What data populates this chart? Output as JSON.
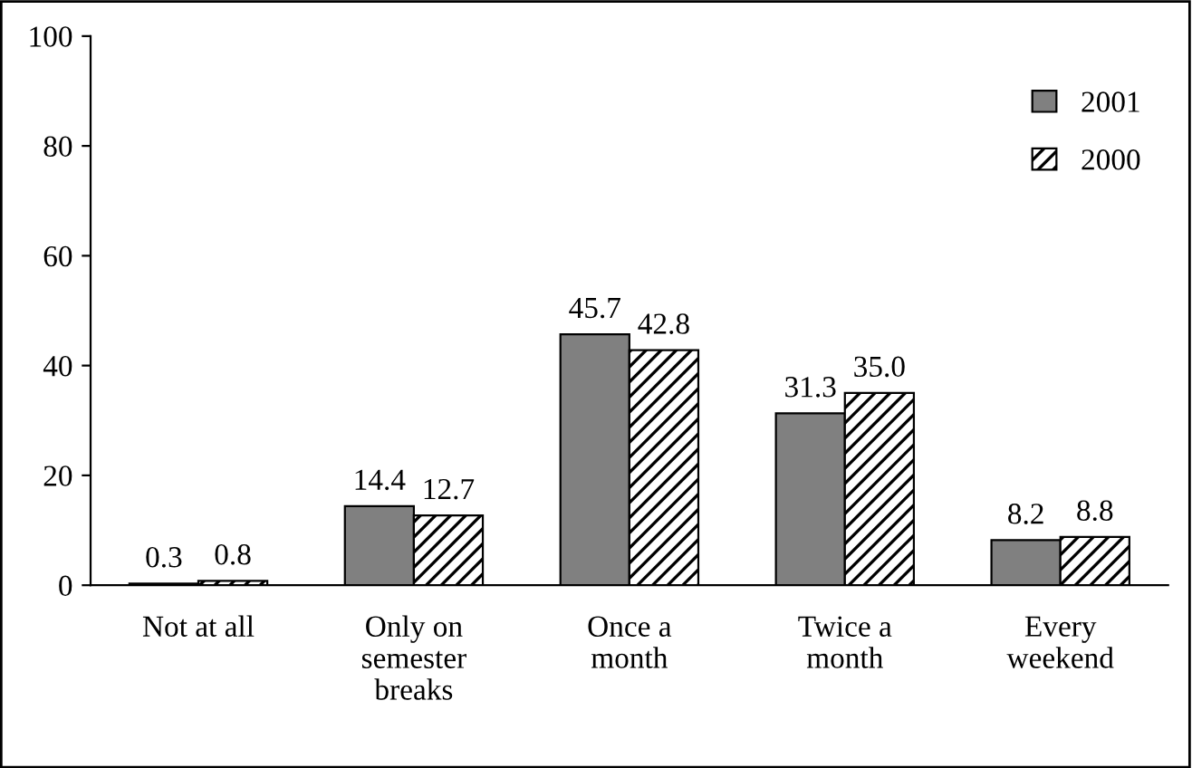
{
  "chart_data": {
    "type": "bar",
    "categories": [
      "Not at all",
      "Only on\nsemester\nbreaks",
      "Once a\nmonth",
      "Twice a\nmonth",
      "Every\nweekend"
    ],
    "series": [
      {
        "name": "2001",
        "color": "#808080",
        "values": [
          0.3,
          14.4,
          45.7,
          31.3,
          8.2
        ],
        "value_labels": [
          "0.3",
          "14.4",
          "45.7",
          "31.3",
          "8.2"
        ]
      },
      {
        "name": "2000",
        "color": "#000000",
        "values": [
          0.8,
          12.7,
          42.8,
          35.0,
          8.8
        ],
        "value_labels": [
          "0.8",
          "12.7",
          "42.8",
          "35.0",
          "8.8"
        ]
      }
    ],
    "ylim": [
      0,
      100
    ],
    "yticks": [
      0,
      20,
      40,
      60,
      80,
      100
    ],
    "grid": false,
    "legend": "top right"
  }
}
